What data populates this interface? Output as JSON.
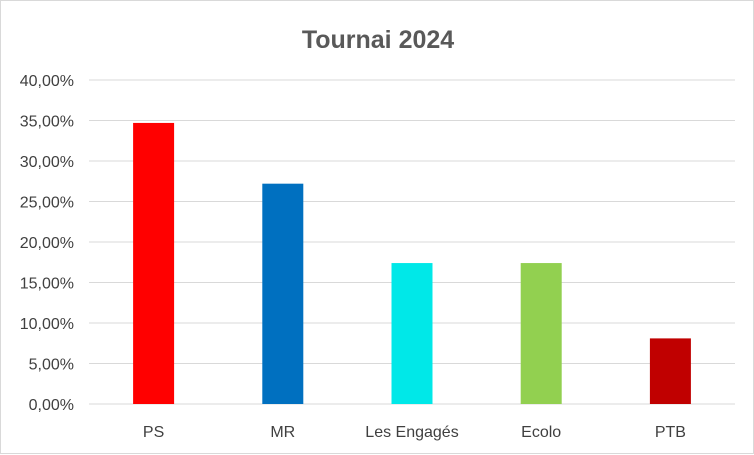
{
  "chart_data": {
    "type": "bar",
    "title": "Tournai 2024",
    "xlabel": "",
    "ylabel": "",
    "categories": [
      "PS",
      "MR",
      "Les Engagés",
      "Ecolo",
      "PTB"
    ],
    "values": [
      34.7,
      27.2,
      17.4,
      17.4,
      8.1
    ],
    "colors": [
      "#ff0000",
      "#0070c0",
      "#00e8e8",
      "#92d050",
      "#c00000"
    ],
    "ylim": [
      0,
      40
    ],
    "yticks": [
      "0,00%",
      "5,00%",
      "10,00%",
      "15,00%",
      "20,00%",
      "25,00%",
      "30,00%",
      "35,00%",
      "40,00%"
    ],
    "grid": true,
    "legend": "none"
  }
}
